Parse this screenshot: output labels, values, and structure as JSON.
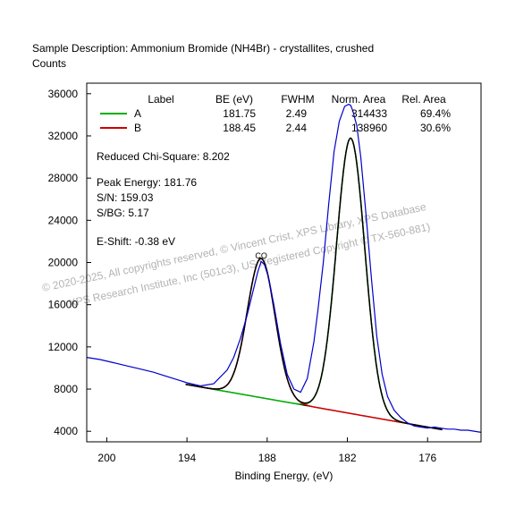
{
  "chart_data": {
    "type": "line",
    "title": "Sample Description:  Ammonium Bromide (NH4Br) - crystallites, crushed",
    "ylabel": "Counts",
    "xlabel": "Binding Energy, (eV)",
    "xlim": [
      201.5,
      172.0
    ],
    "ylim": [
      3000,
      37000
    ],
    "x_ticks": [
      200,
      194,
      188,
      182,
      176
    ],
    "y_ticks": [
      4000,
      8000,
      12000,
      16000,
      20000,
      24000,
      28000,
      32000,
      36000
    ],
    "legend": {
      "headers": [
        "Label",
        "BE (eV)",
        "FWHM",
        "Norm. Area",
        "Rel. Area"
      ],
      "rows": [
        {
          "label": "A",
          "be": "181.75",
          "fwhm": "2.49",
          "norm_area": "314433",
          "rel_area": "69.4%",
          "color": "#00b000"
        },
        {
          "label": "B",
          "be": "188.45",
          "fwhm": "2.44",
          "norm_area": "138960",
          "rel_area": "30.6%",
          "color": "#d00000"
        }
      ]
    },
    "annotations": {
      "chi_square": "Reduced Chi-Square: 8.202",
      "peak_energy": "Peak Energy: 181.76",
      "sn": "S/N: 159.03",
      "sbg": "S/BG: 5.17",
      "eshift": "E-Shift: -0.38 eV",
      "peak_marker": "CO"
    },
    "watermark": [
      "©  2020-2025,  All copyrights reserved,  ©  Vincent Crist,  XPS Library, XPS Database",
      "XPS Research Institute, Inc (501c3), US Registered Copyright © TX-560-881)"
    ],
    "background": {
      "x": [
        194.1,
        174.9
      ],
      "y": [
        8450,
        4150
      ]
    },
    "peaks": [
      {
        "name": "A",
        "center": 181.75,
        "fwhm": 2.49,
        "height": 26100,
        "color": "#00b000"
      },
      {
        "name": "B",
        "center": 188.45,
        "fwhm": 2.44,
        "height": 13200,
        "color": "#d00000"
      }
    ],
    "series": [
      {
        "name": "raw data",
        "color": "#0000cc",
        "x": [
          201.5,
          200.5,
          199.5,
          198.5,
          197.5,
          196.5,
          195.5,
          194.5,
          194.0,
          193.0,
          192.0,
          191.0,
          190.5,
          190.0,
          189.5,
          189.0,
          188.7,
          188.45,
          188.2,
          187.9,
          187.5,
          187.0,
          186.5,
          186.0,
          185.5,
          185.0,
          184.5,
          184.2,
          183.8,
          183.4,
          183.0,
          182.6,
          182.2,
          181.9,
          181.75,
          181.6,
          181.3,
          181.0,
          180.6,
          180.2,
          179.8,
          179.4,
          179.0,
          178.5,
          178.0,
          177.5,
          177.0,
          176.5,
          176.0,
          175.5,
          175.0,
          174.5,
          174.0,
          173.5,
          173.0,
          172.0
        ],
        "y": [
          11000,
          10800,
          10500,
          10200,
          9900,
          9600,
          9200,
          8800,
          8600,
          8300,
          8500,
          9800,
          11000,
          12800,
          15000,
          17600,
          19100,
          20100,
          19800,
          18600,
          16000,
          12300,
          9400,
          8000,
          7700,
          9000,
          12500,
          15500,
          20000,
          25500,
          30500,
          33400,
          34800,
          35000,
          34900,
          34400,
          33000,
          30000,
          24500,
          18500,
          13000,
          9400,
          7300,
          6000,
          5300,
          4800,
          4500,
          4400,
          4300,
          4400,
          4300,
          4200,
          4200,
          4100,
          4100,
          3900
        ]
      }
    ]
  }
}
